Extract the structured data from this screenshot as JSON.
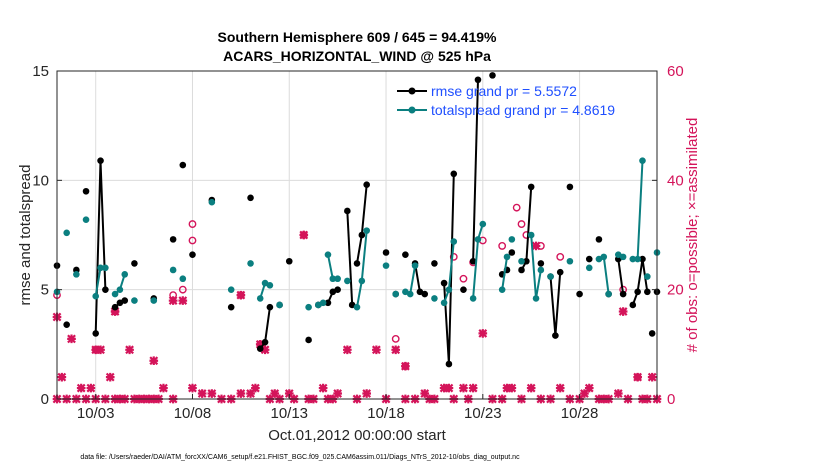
{
  "chart_data": {
    "type": "line",
    "title": "Southern Hemisphere 609 / 645 = 94.419%",
    "subtitle": "ACARS_HORIZONTAL_WIND @ 525 hPa",
    "xlabel": "Oct.01,2012 00:00:00 start",
    "ylabel_left": "rmse and totalspread",
    "ylabel_right": "# of obs: o=possible; ×=assimilated",
    "x_ticks": [
      "10/03",
      "10/08",
      "10/13",
      "10/18",
      "10/23",
      "10/28"
    ],
    "y_ticks_left": [
      "0",
      "5",
      "10",
      "15"
    ],
    "y_ticks_right": [
      "0",
      "20",
      "40",
      "60"
    ],
    "ylim_left": [
      0,
      15
    ],
    "ylim_right": [
      0,
      60
    ],
    "xlim": [
      1.0,
      32.0
    ],
    "grid": true,
    "legend_placement": "top-right",
    "colors": {
      "rmse": "#000000",
      "spread": "#0b7f80",
      "obs": "#d4145a",
      "legend_text": "#1f4fff"
    },
    "series": [
      {
        "name": "rmse grand pr = 5.5572",
        "color": "#000000",
        "segments": [
          [
            [
              1.0,
              6.1
            ]
          ],
          [
            [
              1.5,
              3.4
            ]
          ],
          [
            [
              2.0,
              5.9
            ]
          ],
          [
            [
              2.5,
              9.5
            ]
          ],
          [
            [
              3.0,
              3.0
            ],
            [
              3.25,
              10.9
            ],
            [
              3.5,
              5.0
            ]
          ],
          [
            [
              4.0,
              4.2
            ],
            [
              4.25,
              4.4
            ],
            [
              4.5,
              4.5
            ]
          ],
          [
            [
              5.0,
              6.2
            ]
          ],
          [
            [
              6.0,
              4.6
            ]
          ],
          [
            [
              7.0,
              7.3
            ]
          ],
          [
            [
              7.5,
              10.7
            ]
          ],
          [
            [
              8.0,
              6.6
            ]
          ],
          [
            [
              9.0,
              9.1
            ]
          ],
          [
            [
              10.0,
              4.2
            ]
          ],
          [
            [
              11.0,
              9.2
            ]
          ],
          [
            [
              11.5,
              2.3
            ],
            [
              11.75,
              2.6
            ],
            [
              12.0,
              4.2
            ]
          ],
          [
            [
              12.5,
              4.3
            ]
          ],
          [
            [
              13.0,
              6.3
            ]
          ],
          [
            [
              14.0,
              2.7
            ]
          ],
          [
            [
              14.5,
              4.3
            ]
          ],
          [
            [
              15.0,
              4.4
            ],
            [
              15.25,
              4.9
            ],
            [
              15.5,
              5.0
            ]
          ],
          [
            [
              16.0,
              8.6
            ],
            [
              16.25,
              4.3
            ]
          ],
          [
            [
              16.5,
              6.2
            ],
            [
              16.75,
              7.5
            ],
            [
              17.0,
              9.8
            ]
          ],
          [
            [
              18.0,
              6.7
            ]
          ],
          [
            [
              18.5,
              4.8
            ]
          ],
          [
            [
              19.0,
              6.6
            ]
          ],
          [
            [
              19.5,
              6.2
            ],
            [
              19.75,
              4.9
            ],
            [
              20.0,
              4.8
            ]
          ],
          [
            [
              20.5,
              6.2
            ]
          ],
          [
            [
              21.0,
              5.3
            ],
            [
              21.25,
              1.6
            ],
            [
              21.5,
              10.3
            ]
          ],
          [
            [
              22.0,
              5.0
            ]
          ],
          [
            [
              22.5,
              6.3
            ],
            [
              22.75,
              14.6
            ]
          ],
          [
            [
              23.5,
              14.8
            ]
          ],
          [
            [
              24.0,
              5.7
            ],
            [
              24.25,
              5.9
            ]
          ],
          [
            [
              24.5,
              6.7
            ]
          ],
          [
            [
              25.0,
              5.9
            ],
            [
              25.25,
              6.3
            ],
            [
              25.5,
              9.7
            ]
          ],
          [
            [
              26.0,
              6.2
            ]
          ],
          [
            [
              26.5,
              5.6
            ],
            [
              26.75,
              2.9
            ],
            [
              27.0,
              5.8
            ]
          ],
          [
            [
              27.5,
              9.7
            ]
          ],
          [
            [
              28.0,
              4.8
            ]
          ],
          [
            [
              28.5,
              6.4
            ]
          ],
          [
            [
              29.0,
              7.3
            ]
          ],
          [
            [
              29.5,
              4.8
            ]
          ],
          [
            [
              30.0,
              6.4
            ],
            [
              30.25,
              4.8
            ]
          ],
          [
            [
              30.75,
              4.3
            ],
            [
              31.0,
              4.9
            ],
            [
              31.25,
              6.4
            ],
            [
              31.5,
              4.9
            ]
          ],
          [
            [
              31.75,
              3.0
            ]
          ],
          [
            [
              32.0,
              4.9
            ]
          ]
        ]
      },
      {
        "name": "totalspread grand pr = 4.8619",
        "color": "#0b7f80",
        "segments": [
          [
            [
              1.0,
              4.9
            ]
          ],
          [
            [
              1.5,
              7.6
            ]
          ],
          [
            [
              2.0,
              5.7
            ]
          ],
          [
            [
              2.5,
              8.2
            ]
          ],
          [
            [
              3.0,
              4.7
            ],
            [
              3.25,
              6.0
            ],
            [
              3.5,
              6.0
            ]
          ],
          [
            [
              4.0,
              4.8
            ],
            [
              4.25,
              5.0
            ],
            [
              4.5,
              5.7
            ]
          ],
          [
            [
              5.0,
              4.5
            ]
          ],
          [
            [
              6.0,
              4.5
            ]
          ],
          [
            [
              7.0,
              5.9
            ]
          ],
          [
            [
              7.5,
              5.5
            ]
          ],
          [
            [
              9.0,
              9.0
            ]
          ],
          [
            [
              10.0,
              5.0
            ]
          ],
          [
            [
              11.0,
              6.2
            ]
          ],
          [
            [
              11.5,
              4.6
            ],
            [
              11.75,
              5.3
            ],
            [
              12.0,
              5.2
            ]
          ],
          [
            [
              12.5,
              4.3
            ]
          ],
          [
            [
              14.0,
              4.2
            ]
          ],
          [
            [
              14.5,
              4.3
            ],
            [
              14.75,
              4.4
            ]
          ],
          [
            [
              15.0,
              6.6
            ],
            [
              15.25,
              5.5
            ],
            [
              15.5,
              5.5
            ]
          ],
          [
            [
              16.0,
              5.4
            ]
          ],
          [
            [
              16.5,
              4.2
            ],
            [
              16.75,
              5.4
            ],
            [
              17.0,
              7.7
            ]
          ],
          [
            [
              18.0,
              6.1
            ]
          ],
          [
            [
              18.5,
              4.8
            ]
          ],
          [
            [
              19.0,
              4.9
            ],
            [
              19.25,
              4.8
            ],
            [
              19.5,
              6.1
            ]
          ],
          [
            [
              20.5,
              4.6
            ]
          ],
          [
            [
              21.0,
              4.4
            ],
            [
              21.25,
              5.0
            ],
            [
              21.5,
              7.2
            ]
          ],
          [
            [
              22.5,
              4.6
            ],
            [
              22.75,
              7.3
            ],
            [
              23.0,
              8.0
            ]
          ],
          [
            [
              24.0,
              5.0
            ],
            [
              24.25,
              6.5
            ]
          ],
          [
            [
              24.5,
              7.3
            ]
          ],
          [
            [
              25.0,
              6.3
            ]
          ],
          [
            [
              25.5,
              7.5
            ],
            [
              25.75,
              4.6
            ],
            [
              26.0,
              5.9
            ]
          ],
          [
            [
              26.5,
              5.6
            ]
          ],
          [
            [
              27.5,
              6.3
            ]
          ],
          [
            [
              28.5,
              6.0
            ]
          ],
          [
            [
              29.0,
              6.4
            ],
            [
              29.25,
              6.5
            ],
            [
              29.5,
              4.8
            ]
          ],
          [
            [
              30.0,
              6.6
            ],
            [
              30.25,
              6.5
            ]
          ],
          [
            [
              30.75,
              6.4
            ],
            [
              31.0,
              6.4
            ],
            [
              31.25,
              10.9
            ]
          ],
          [
            [
              31.5,
              5.6
            ]
          ],
          [
            [
              32.0,
              6.7
            ]
          ]
        ]
      }
    ],
    "obs_assimilated": [
      [
        1,
        15
      ],
      [
        1,
        0
      ],
      [
        1.25,
        4
      ],
      [
        1.5,
        0
      ],
      [
        1.75,
        11
      ],
      [
        2,
        0
      ],
      [
        2.25,
        2
      ],
      [
        2.5,
        0
      ],
      [
        2.75,
        2
      ],
      [
        3,
        9
      ],
      [
        3,
        0
      ],
      [
        3.25,
        9
      ],
      [
        3.5,
        0
      ],
      [
        3.75,
        4
      ],
      [
        4,
        16
      ],
      [
        4,
        0
      ],
      [
        4.25,
        0
      ],
      [
        4.5,
        0
      ],
      [
        4.75,
        9
      ],
      [
        5,
        0
      ],
      [
        5.25,
        0
      ],
      [
        5.5,
        0
      ],
      [
        5.75,
        0
      ],
      [
        6,
        7
      ],
      [
        6,
        0
      ],
      [
        6.25,
        0
      ],
      [
        6.5,
        2
      ],
      [
        7,
        18
      ],
      [
        7,
        0
      ],
      [
        7.5,
        18
      ],
      [
        8,
        2
      ],
      [
        8.5,
        1
      ],
      [
        9,
        1
      ],
      [
        9.5,
        0
      ],
      [
        10,
        0
      ],
      [
        10.5,
        19
      ],
      [
        10.5,
        1
      ],
      [
        11,
        1
      ],
      [
        11.25,
        2
      ],
      [
        11.5,
        10
      ],
      [
        11.75,
        9
      ],
      [
        12,
        0
      ],
      [
        12.25,
        1
      ],
      [
        12.5,
        0
      ],
      [
        13,
        1
      ],
      [
        13.25,
        0
      ],
      [
        13.75,
        30
      ],
      [
        14,
        0
      ],
      [
        14.25,
        0
      ],
      [
        14.75,
        2
      ],
      [
        15,
        0
      ],
      [
        15.25,
        0
      ],
      [
        15.5,
        1
      ],
      [
        16,
        9
      ],
      [
        16.5,
        0
      ],
      [
        17,
        1
      ],
      [
        17.5,
        9
      ],
      [
        18,
        0
      ],
      [
        18.5,
        9
      ],
      [
        19,
        6
      ],
      [
        19,
        0
      ],
      [
        19.5,
        0
      ],
      [
        20,
        1
      ],
      [
        20.25,
        0
      ],
      [
        20.5,
        0
      ],
      [
        21,
        2
      ],
      [
        21.25,
        2
      ],
      [
        21.5,
        0
      ],
      [
        22,
        2
      ],
      [
        22.25,
        0
      ],
      [
        22.5,
        2
      ],
      [
        23,
        12
      ],
      [
        23.5,
        0
      ],
      [
        24,
        0
      ],
      [
        24.25,
        2
      ],
      [
        24.5,
        2
      ],
      [
        25,
        0
      ],
      [
        25.5,
        2
      ],
      [
        25.75,
        28
      ],
      [
        26,
        0
      ],
      [
        26.5,
        0
      ],
      [
        27,
        2
      ],
      [
        27.5,
        0
      ],
      [
        28,
        0
      ],
      [
        28.25,
        1
      ],
      [
        28.5,
        2
      ],
      [
        29,
        0
      ],
      [
        29.25,
        0
      ],
      [
        29.5,
        0
      ],
      [
        30,
        1
      ],
      [
        30.25,
        16
      ],
      [
        30.5,
        0
      ],
      [
        31,
        4
      ],
      [
        31.25,
        0
      ],
      [
        31.5,
        0
      ],
      [
        31.75,
        4
      ],
      [
        32,
        0
      ]
    ],
    "obs_possible": [
      [
        1,
        19
      ],
      [
        3,
        9
      ],
      [
        4,
        16
      ],
      [
        7,
        19
      ],
      [
        7.5,
        20
      ],
      [
        8,
        32
      ],
      [
        8,
        29
      ],
      [
        10.5,
        19
      ],
      [
        11.5,
        10
      ],
      [
        13.75,
        30
      ],
      [
        18.5,
        11
      ],
      [
        19,
        6
      ],
      [
        21.5,
        26
      ],
      [
        22,
        22
      ],
      [
        22.5,
        25
      ],
      [
        23,
        29
      ],
      [
        24,
        28
      ],
      [
        24.75,
        35
      ],
      [
        25,
        32
      ],
      [
        25.25,
        30
      ],
      [
        26,
        28
      ],
      [
        27,
        26
      ],
      [
        30.25,
        20
      ],
      [
        31,
        4
      ]
    ],
    "footer": "data file: /Users/raeder/DAI/ATM_forcXX/CAM6_setup/f.e21.FHIST_BGC.f09_025.CAM6assim.011/Diags_NTrS_2012-10/obs_diag_output.nc"
  }
}
